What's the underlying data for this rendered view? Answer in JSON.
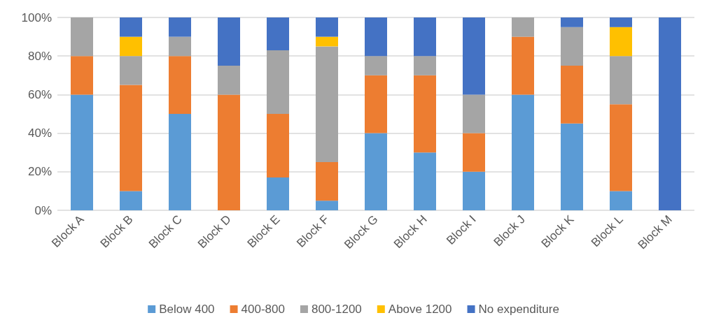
{
  "chart_data": {
    "type": "bar",
    "stacked": true,
    "categories": [
      "Block A",
      "Block B",
      "Block C",
      "Block D",
      "Block E",
      "Block F",
      "Block G",
      "Block H",
      "Block I",
      "Block J",
      "Block K",
      "Block L",
      "Block M"
    ],
    "series": [
      {
        "name": "Below 400",
        "color": "#5b9bd5",
        "values": [
          60,
          10,
          50,
          0,
          17,
          5,
          40,
          30,
          20,
          60,
          45,
          10,
          0
        ]
      },
      {
        "name": "400-800",
        "color": "#ed7d31",
        "values": [
          20,
          55,
          30,
          60,
          33,
          20,
          30,
          40,
          20,
          30,
          30,
          45,
          0
        ]
      },
      {
        "name": "800-1200",
        "color": "#a5a5a5",
        "values": [
          20,
          15,
          10,
          15,
          33,
          60,
          10,
          10,
          20,
          10,
          20,
          25,
          0
        ]
      },
      {
        "name": "Above 1200",
        "color": "#ffc000",
        "values": [
          0,
          10,
          0,
          0,
          0,
          5,
          0,
          0,
          0,
          0,
          0,
          15,
          0
        ]
      },
      {
        "name": "No expenditure",
        "color": "#4472c4",
        "values": [
          0,
          10,
          10,
          25,
          17,
          10,
          20,
          20,
          40,
          0,
          5,
          5,
          100
        ]
      }
    ],
    "ylim": [
      0,
      100
    ],
    "yticks": [
      {
        "value": 0,
        "label": "0%"
      },
      {
        "value": 20,
        "label": "20%"
      },
      {
        "value": 40,
        "label": "40%"
      },
      {
        "value": 60,
        "label": "60%"
      },
      {
        "value": 80,
        "label": "80%"
      },
      {
        "value": 100,
        "label": "100%"
      }
    ],
    "grid": "y",
    "legend": "bottom"
  }
}
